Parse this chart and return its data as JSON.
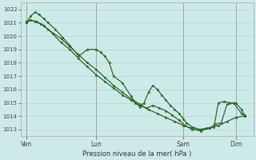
{
  "xlabel": "Pression niveau de la mer( hPa )",
  "bg_color": "#cdeae8",
  "grid_color": "#aad4d2",
  "line_color": "#2d6b2d",
  "marker_color": "#2d6b2d",
  "ylim_min": 1012.5,
  "ylim_max": 1022.5,
  "yticks": [
    1013,
    1014,
    1015,
    1016,
    1017,
    1018,
    1019,
    1020,
    1021,
    1022
  ],
  "day_labels": [
    "Ven",
    "Lun",
    "Sam",
    "Dim"
  ],
  "day_positions": [
    0,
    96,
    216,
    288
  ],
  "xlim_min": -8,
  "xlim_max": 312,
  "s1x": [
    0,
    6,
    12,
    20,
    30,
    48,
    60,
    72,
    84,
    96,
    108,
    120,
    132,
    144,
    156,
    168,
    180,
    192,
    204,
    216,
    228,
    240,
    252,
    264,
    276,
    288,
    300
  ],
  "s1y": [
    1021.1,
    1021.2,
    1021.1,
    1020.9,
    1020.5,
    1019.8,
    1019.2,
    1018.6,
    1018.0,
    1017.5,
    1016.9,
    1016.3,
    1015.8,
    1015.3,
    1014.9,
    1014.5,
    1014.2,
    1013.9,
    1013.6,
    1013.3,
    1013.1,
    1013.0,
    1013.1,
    1013.3,
    1013.6,
    1013.9,
    1014.0
  ],
  "s2x": [
    0,
    6,
    12,
    18,
    24,
    30,
    40,
    50,
    60,
    72,
    84,
    96,
    102,
    108,
    114,
    120,
    132,
    144,
    150,
    156,
    162,
    168,
    174,
    180,
    186,
    192,
    198,
    204,
    210,
    216,
    220,
    228,
    238,
    248,
    258,
    264,
    272,
    280,
    288,
    296,
    300
  ],
  "s2y": [
    1021.0,
    1021.5,
    1021.8,
    1021.6,
    1021.3,
    1021.0,
    1020.5,
    1019.9,
    1019.3,
    1018.5,
    1019.0,
    1019.0,
    1018.8,
    1018.5,
    1018.0,
    1017.0,
    1016.5,
    1015.5,
    1015.0,
    1014.7,
    1015.0,
    1015.8,
    1016.3,
    1016.0,
    1015.6,
    1015.2,
    1014.8,
    1014.5,
    1014.2,
    1013.8,
    1013.5,
    1013.2,
    1013.0,
    1013.1,
    1013.2,
    1015.0,
    1015.1,
    1015.0,
    1015.0,
    1014.5,
    1014.1
  ],
  "s3x": [
    0,
    6,
    14,
    24,
    36,
    48,
    60,
    72,
    84,
    96,
    108,
    120,
    132,
    144,
    156,
    165,
    174,
    183,
    192,
    200,
    210,
    218,
    228,
    240,
    252,
    260,
    268,
    276,
    285,
    296,
    300
  ],
  "s3y": [
    1021.0,
    1021.2,
    1021.1,
    1020.8,
    1020.2,
    1019.5,
    1019.0,
    1018.3,
    1017.7,
    1017.1,
    1016.6,
    1016.1,
    1015.6,
    1015.2,
    1014.8,
    1014.6,
    1014.8,
    1014.6,
    1014.4,
    1014.1,
    1013.7,
    1013.3,
    1013.0,
    1012.9,
    1013.1,
    1013.4,
    1013.5,
    1014.9,
    1015.0,
    1014.2,
    1014.0
  ]
}
